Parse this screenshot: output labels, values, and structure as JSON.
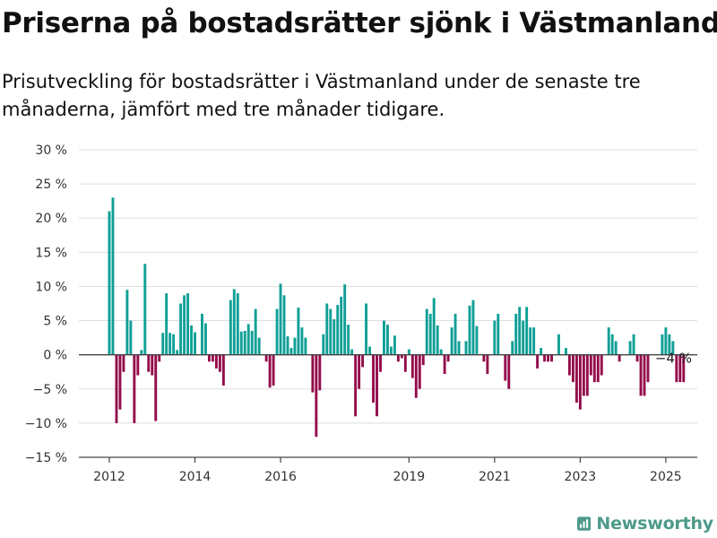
{
  "title": "Priserna på bostadsrätter sjönk i Västmanland",
  "subtitle": "Prisutveckling för bostadsrätter i Västmanland under de senaste tre månaderna, jämfört med tre månader tidigare.",
  "brand": {
    "name": "Newsworthy",
    "icon": "bar-chart-logo-icon"
  },
  "colors": {
    "positive": "#0f9f96",
    "negative": "#930b4b",
    "grid": "#dedede",
    "axis": "#444444",
    "brand": "#4e9a8a"
  },
  "chart_data": {
    "type": "bar",
    "x_start": "2012-01",
    "x_step": "month",
    "ylim": [
      -15,
      30
    ],
    "yticks": [
      30,
      25,
      20,
      15,
      10,
      5,
      0,
      -5,
      -10,
      -15
    ],
    "ytick_labels": [
      "30 %",
      "25 %",
      "20 %",
      "15 %",
      "10 %",
      "5 %",
      "0 %",
      "−5 %",
      "−10 %",
      "−15 %"
    ],
    "xticks": [
      {
        "month": "2012-01",
        "label": "2012"
      },
      {
        "month": "2014-01",
        "label": "2014"
      },
      {
        "month": "2016-01",
        "label": "2016"
      },
      {
        "month": "2019-01",
        "label": "2019"
      },
      {
        "month": "2021-01",
        "label": "2021"
      },
      {
        "month": "2023-01",
        "label": "2023"
      },
      {
        "month": "2025-01",
        "label": "2025"
      }
    ],
    "values": [
      21,
      23,
      -10,
      -8,
      -2.5,
      9.5,
      5,
      -10,
      -3,
      0.7,
      13.3,
      -2.5,
      -3,
      -9.7,
      -1,
      3.2,
      9,
      3.2,
      3,
      0.7,
      7.5,
      8.7,
      9,
      4.3,
      3.3,
      0,
      6,
      4.6,
      -1,
      -1,
      -2,
      -2.5,
      -4.5,
      0,
      8,
      9.6,
      9,
      3.4,
      3.5,
      4.5,
      3.5,
      6.7,
      2.5,
      0,
      -1,
      -4.8,
      -4.5,
      6.7,
      10.4,
      8.7,
      2.7,
      1,
      2.5,
      6.9,
      4,
      2.5,
      0,
      -5.5,
      -12,
      -5.2,
      3,
      7.5,
      6.7,
      5.2,
      7.3,
      8.5,
      10.3,
      4.4,
      0.8,
      -9,
      -5,
      -1.8,
      7.5,
      1.2,
      -7,
      -9,
      -2.5,
      5,
      4.4,
      1.2,
      2.8,
      -1,
      -0.5,
      -2.5,
      0.8,
      -3.4,
      -6.3,
      -5,
      -1.5,
      6.7,
      6,
      8.3,
      4.3,
      0.8,
      -2.8,
      -1,
      4,
      6,
      2,
      0,
      2,
      7.2,
      8,
      4.2,
      0,
      -1,
      -2.8,
      0,
      5,
      6,
      0,
      -3.8,
      -5,
      2,
      6,
      7,
      5,
      7,
      4,
      4,
      -2,
      1,
      -1,
      -1,
      -1,
      0,
      3,
      0,
      1,
      -3,
      -4,
      -7,
      -8,
      -6,
      -6,
      -3,
      -4,
      -4,
      -3,
      0,
      4,
      3,
      2,
      -1,
      0,
      0,
      2,
      3,
      -1,
      -6,
      -6,
      -4,
      0,
      0,
      0,
      3,
      4,
      3,
      2,
      -4,
      -4,
      -4
    ],
    "annotation": {
      "text": "−4 %",
      "month": "2025-03"
    },
    "grid": true,
    "legend": "none"
  }
}
